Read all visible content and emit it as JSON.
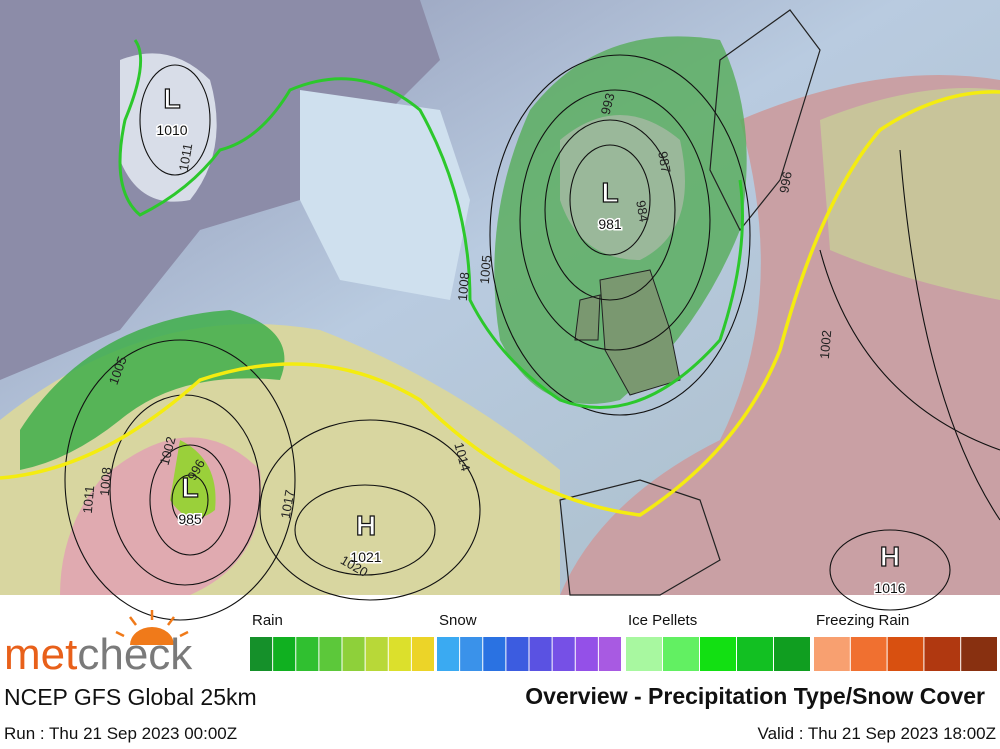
{
  "map": {
    "pressure_centers": [
      {
        "symbol": "L",
        "value": "1010"
      },
      {
        "symbol": "L",
        "value": "981"
      },
      {
        "symbol": "L",
        "value": "985"
      },
      {
        "symbol": "H",
        "value": "1021"
      },
      {
        "symbol": "H",
        "value": "1016"
      }
    ],
    "isobar_labels": [
      "1011",
      "993",
      "987",
      "984",
      "996",
      "1008",
      "1005",
      "1005",
      "1002",
      "1008",
      "1011",
      "996",
      "1017",
      "1014",
      "1020",
      "1002"
    ]
  },
  "logo": {
    "part1": "met",
    "part2": "check"
  },
  "legend": [
    {
      "label": "Rain",
      "colors": [
        "#15902a",
        "#10b020",
        "#30c030",
        "#5cc83a",
        "#8ed03a",
        "#b8d838",
        "#dce02c",
        "#ecd428"
      ]
    },
    {
      "label": "Snow",
      "colors": [
        "#3aaaf2",
        "#3a92ea",
        "#2a72e2",
        "#3c5ce0",
        "#5a52e2",
        "#7650e6",
        "#9450e8",
        "#a85ae2"
      ]
    },
    {
      "label": "Ice Pellets",
      "colors": [
        "#a8f8a0",
        "#62f062",
        "#12e012",
        "#12c022",
        "#109e20"
      ]
    },
    {
      "label": "Freezing Rain",
      "colors": [
        "#f8a070",
        "#f07030",
        "#d85010",
        "#b03810",
        "#883010"
      ]
    }
  ],
  "footer": {
    "model": "NCEP GFS Global 25km",
    "title": "Overview - Precipitation Type/Snow Cover",
    "run": "Run : Thu 21 Sep 2023 00:00Z",
    "valid": "Valid : Thu 21 Sep 2023 18:00Z"
  }
}
